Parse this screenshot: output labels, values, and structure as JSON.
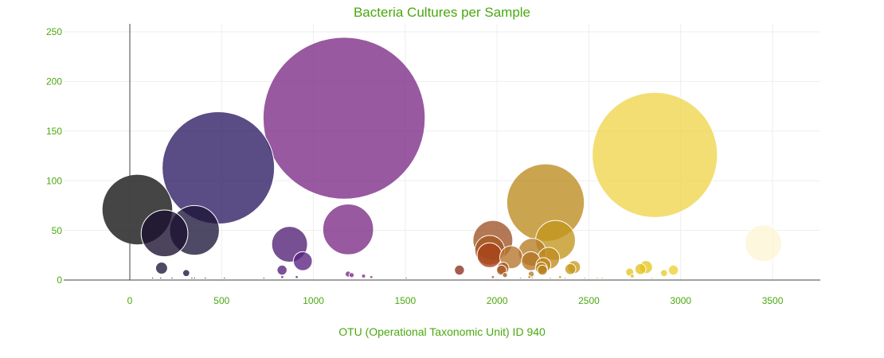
{
  "chart_data": {
    "type": "scatter",
    "title": "Bacteria Cultures per Sample",
    "xlabel": "OTU (Operational Taxonomic Unit) ID 940",
    "ylabel": "",
    "xlim": [
      -360,
      3760
    ],
    "ylim": [
      0,
      258
    ],
    "xticks": [
      0,
      500,
      1000,
      1500,
      2000,
      2500,
      3000,
      3500
    ],
    "yticks": [
      0,
      50,
      100,
      150,
      200,
      250
    ],
    "grid": true,
    "legend": "none",
    "text_color": "#4aa80f",
    "bubble_opacity": 0.78,
    "points": [
      {
        "x": 1167,
        "y": 163,
        "size": 163,
        "color": "#7b2a85"
      },
      {
        "x": 2859,
        "y": 126,
        "size": 126,
        "color": "#eed54a"
      },
      {
        "x": 482,
        "y": 113,
        "size": 113,
        "color": "#2c1a63"
      },
      {
        "x": 2264,
        "y": 78,
        "size": 78,
        "color": "#bd8a1e"
      },
      {
        "x": 41,
        "y": 71,
        "size": 71,
        "color": "#111111"
      },
      {
        "x": 1189,
        "y": 51,
        "size": 51,
        "color": "#7b2a85"
      },
      {
        "x": 352,
        "y": 50,
        "size": 50,
        "color": "#1c1638"
      },
      {
        "x": 189,
        "y": 47,
        "size": 47,
        "color": "#1a1030"
      },
      {
        "x": 1977,
        "y": 40,
        "size": 40,
        "color": "#9e5225"
      },
      {
        "x": 2318,
        "y": 40,
        "size": 40,
        "color": "#c2961e"
      },
      {
        "x": 3450,
        "y": 37,
        "size": 37,
        "color": "#fdf6d3"
      },
      {
        "x": 870,
        "y": 36,
        "size": 36,
        "color": "#4f1f73"
      },
      {
        "x": 1960,
        "y": 30,
        "size": 30,
        "color": "#a65720"
      },
      {
        "x": 2191,
        "y": 28,
        "size": 28,
        "color": "#b57b24"
      },
      {
        "x": 1959,
        "y": 25,
        "size": 25,
        "color": "#a8421a"
      },
      {
        "x": 2077,
        "y": 23,
        "size": 23,
        "color": "#b5752a"
      },
      {
        "x": 2281,
        "y": 22,
        "size": 22,
        "color": "#bf8a1e"
      },
      {
        "x": 942,
        "y": 19,
        "size": 19,
        "color": "#5a2080"
      },
      {
        "x": 2184,
        "y": 19,
        "size": 19,
        "color": "#b57524"
      },
      {
        "x": 2252,
        "y": 15,
        "size": 15,
        "color": "#bf8518"
      },
      {
        "x": 2811,
        "y": 13,
        "size": 13,
        "color": "#e6c71e"
      },
      {
        "x": 2419,
        "y": 13,
        "size": 13,
        "color": "#c99a1f"
      },
      {
        "x": 173,
        "y": 12,
        "size": 12,
        "color": "#1c1638"
      },
      {
        "x": 2032,
        "y": 12,
        "size": 12,
        "color": "#a8561e"
      },
      {
        "x": 2241,
        "y": 12,
        "size": 12,
        "color": "#bb8420"
      },
      {
        "x": 2399,
        "y": 11,
        "size": 11,
        "color": "#c59a1c"
      },
      {
        "x": 2781,
        "y": 11,
        "size": 11,
        "color": "#e2c41c"
      },
      {
        "x": 2024,
        "y": 10,
        "size": 10,
        "color": "#a65a22"
      },
      {
        "x": 1795,
        "y": 10,
        "size": 10,
        "color": "#8a2f1e"
      },
      {
        "x": 2960,
        "y": 10,
        "size": 10,
        "color": "#eecf2e"
      },
      {
        "x": 829,
        "y": 10,
        "size": 10,
        "color": "#57207a"
      },
      {
        "x": 2247,
        "y": 10,
        "size": 10,
        "color": "#b58118"
      },
      {
        "x": 2722,
        "y": 8,
        "size": 8,
        "color": "#e4c421"
      },
      {
        "x": 307,
        "y": 7,
        "size": 7,
        "color": "#201040"
      },
      {
        "x": 2909,
        "y": 7,
        "size": 7,
        "color": "#e8ca29"
      },
      {
        "x": 2186,
        "y": 6,
        "size": 6,
        "color": "#b07d25"
      },
      {
        "x": 1189,
        "y": 6,
        "size": 6,
        "color": "#7b2a85"
      },
      {
        "x": 1208,
        "y": 5,
        "size": 5,
        "color": "#7b2a85"
      },
      {
        "x": 2043,
        "y": 5,
        "size": 5,
        "color": "#a8561e"
      },
      {
        "x": 2736,
        "y": 4,
        "size": 4,
        "color": "#e0c020"
      },
      {
        "x": 1273,
        "y": 4,
        "size": 4,
        "color": "#7d2b88"
      },
      {
        "x": 830,
        "y": 3,
        "size": 3,
        "color": "#57207a"
      },
      {
        "x": 909,
        "y": 3,
        "size": 3,
        "color": "#5a2080"
      },
      {
        "x": 1315,
        "y": 3,
        "size": 3,
        "color": "#7d2b88"
      },
      {
        "x": 1977,
        "y": 3,
        "size": 3,
        "color": "#9e5225"
      },
      {
        "x": 2176,
        "y": 3,
        "size": 3,
        "color": "#b07d25"
      },
      {
        "x": 2343,
        "y": 3,
        "size": 3,
        "color": "#c2961e"
      },
      {
        "x": 124,
        "y": 2,
        "size": 2,
        "color": "#1a1a1a"
      },
      {
        "x": 168,
        "y": 2,
        "size": 2,
        "color": "#1a1030"
      },
      {
        "x": 230,
        "y": 2,
        "size": 2,
        "color": "#1c1638"
      },
      {
        "x": 338,
        "y": 2,
        "size": 2,
        "color": "#2a1a5a"
      },
      {
        "x": 352,
        "y": 2,
        "size": 2,
        "color": "#2a1a5a"
      },
      {
        "x": 411,
        "y": 2,
        "size": 2,
        "color": "#2c1a63"
      },
      {
        "x": 515,
        "y": 2,
        "size": 2,
        "color": "#3a1a6e"
      },
      {
        "x": 730,
        "y": 2,
        "size": 2,
        "color": "#4f1f73"
      },
      {
        "x": 1505,
        "y": 2,
        "size": 2,
        "color": "#803080"
      },
      {
        "x": 2127,
        "y": 2,
        "size": 2,
        "color": "#b07d25"
      },
      {
        "x": 2192,
        "y": 2,
        "size": 2,
        "color": "#b57524"
      },
      {
        "x": 2290,
        "y": 2,
        "size": 2,
        "color": "#bf8a1e"
      },
      {
        "x": 2370,
        "y": 2,
        "size": 2,
        "color": "#c59a1c"
      },
      {
        "x": 2477,
        "y": 2,
        "size": 2,
        "color": "#d0a81e"
      },
      {
        "x": 2546,
        "y": 2,
        "size": 2,
        "color": "#d6b21e"
      },
      {
        "x": 2573,
        "y": 2,
        "size": 2,
        "color": "#d6b21e"
      },
      {
        "x": 2842,
        "y": 2,
        "size": 2,
        "color": "#e6c71e"
      }
    ]
  }
}
